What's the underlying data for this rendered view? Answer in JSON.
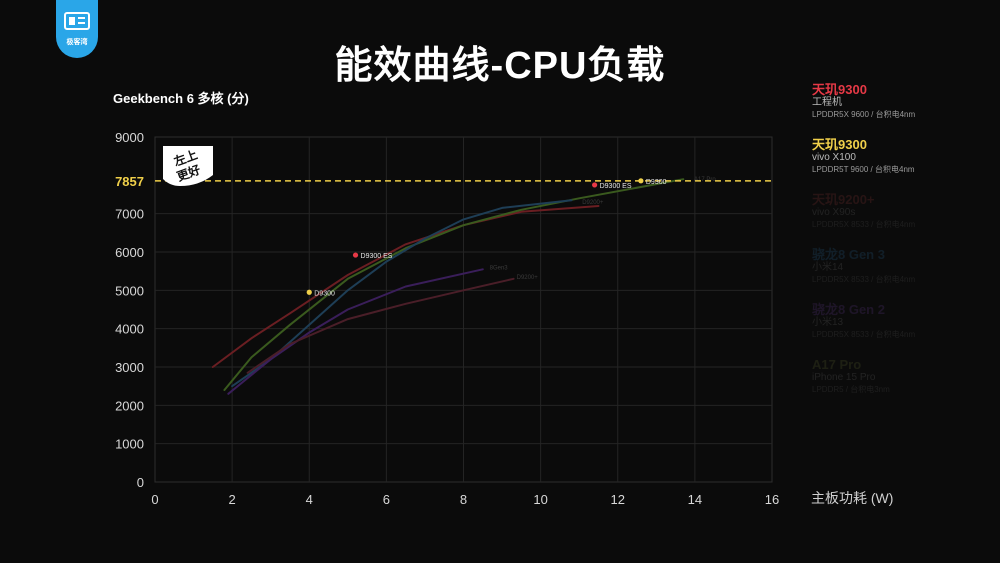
{
  "header": {
    "title": "能效曲线-CPU负载",
    "logo_text": "极客湾",
    "logo_icon": "logo-icon"
  },
  "chart_data": {
    "type": "line",
    "title": "能效曲线-CPU负载",
    "ylabel": "Geekbench 6 多核 (分)",
    "xlabel": "主板功耗 (W)",
    "xlim": [
      0,
      16
    ],
    "ylim": [
      0,
      9000
    ],
    "x_ticks": [
      "0",
      "2",
      "4",
      "6",
      "8",
      "10",
      "12",
      "14",
      "16"
    ],
    "y_ticks": [
      "0",
      "1000",
      "2000",
      "3000",
      "4000",
      "5000",
      "6000",
      "7000",
      "9000"
    ],
    "reference_line": {
      "value": 7857,
      "label": "7857",
      "color": "#f0d04a"
    },
    "annotation_badge": {
      "line1": "左上",
      "line2": "更好"
    },
    "grid": true,
    "series": [
      {
        "name": "天玑9300",
        "color": "#6a1e22",
        "x": [
          1.5,
          2.5,
          3.5,
          5,
          6.5,
          8,
          9.5,
          11.5
        ],
        "y": [
          3000,
          3750,
          4400,
          5400,
          6200,
          6700,
          7050,
          7200
        ]
      },
      {
        "name": "天玑9300",
        "color": "#3a5a1e",
        "x": [
          1.8,
          2.5,
          3.5,
          5,
          6.5,
          8,
          9.5,
          11,
          13.7
        ],
        "y": [
          2400,
          3250,
          4100,
          5300,
          6100,
          6700,
          7100,
          7400,
          7900
        ]
      },
      {
        "name": "骁龙8 Gen 3",
        "color": "#1e3e56",
        "x": [
          2,
          3,
          4,
          5,
          6,
          7,
          8,
          9,
          10.8
        ],
        "y": [
          2500,
          3200,
          4100,
          5000,
          5750,
          6350,
          6850,
          7150,
          7350
        ]
      },
      {
        "name": "骁龙8 Gen 2",
        "color": "#3a1e5a",
        "x": [
          1.9,
          3,
          4,
          5,
          6.5,
          8.5
        ],
        "y": [
          2300,
          3200,
          3900,
          4500,
          5100,
          5550
        ]
      },
      {
        "name": "",
        "color": "#4a1e28",
        "x": [
          2.4,
          3.5,
          5,
          6.5,
          8,
          9.3
        ],
        "y": [
          2850,
          3600,
          4250,
          4650,
          5000,
          5300
        ]
      }
    ],
    "points": [
      {
        "x": 4.0,
        "y": 4950,
        "label": "D9300",
        "color": "#f0d04a"
      },
      {
        "x": 5.2,
        "y": 5920,
        "label": "D9300 ES",
        "color": "#e63946"
      },
      {
        "x": 11.4,
        "y": 7750,
        "label": "D9300 ES",
        "color": "#e63946"
      },
      {
        "x": 12.6,
        "y": 7857,
        "label": "D9300",
        "color": "#f0d04a"
      }
    ],
    "faint_labels": [
      {
        "x": 13.9,
        "y": 7900,
        "label": "A17 Pro"
      },
      {
        "x": 11.0,
        "y": 7300,
        "label": "D9200+"
      },
      {
        "x": 8.6,
        "y": 5600,
        "label": "8Gen3"
      },
      {
        "x": 9.3,
        "y": 5350,
        "label": "D9200+"
      }
    ]
  },
  "legend": [
    {
      "name": "天玑9300",
      "sub": "工程机",
      "spec": "LPDDR5X 9600 / 台积电4nm",
      "color": "#e63946",
      "dim": false
    },
    {
      "name": "天玑9300",
      "sub": "vivo X100",
      "spec": "LPDDR5T 9600 / 台积电4nm",
      "color": "#f0d04a",
      "dim": false
    },
    {
      "name": "天玑9200+",
      "sub": "vivo X90s",
      "spec": "LPDDR5X 8533 / 台积电4nm",
      "color": "#e05050",
      "dim": true
    },
    {
      "name": "骁龙8 Gen 3",
      "sub": "小米14",
      "spec": "LPDDR5X 8533 / 台积电4nm",
      "color": "#3aa0e8",
      "dim": true
    },
    {
      "name": "骁龙8 Gen 2",
      "sub": "小米13",
      "spec": "LPDDR5X 8533 / 台积电4nm",
      "color": "#a05ae8",
      "dim": true
    },
    {
      "name": "A17 Pro",
      "sub": "iPhone 15 Pro",
      "spec": "LPDDR5 / 台积电3nm",
      "color": "#9aa848",
      "dim": true
    }
  ]
}
